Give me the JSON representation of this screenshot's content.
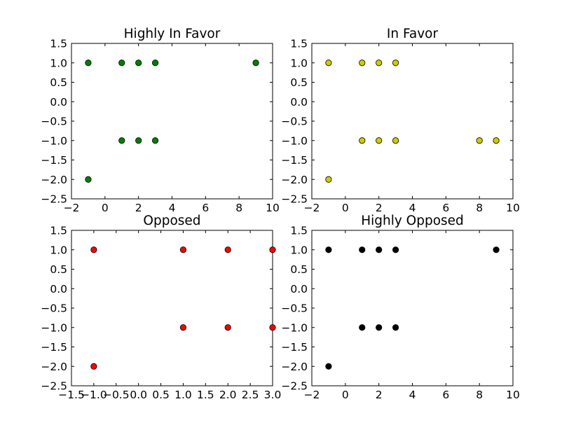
{
  "chart_data": [
    {
      "type": "scatter",
      "title": "Highly In Favor",
      "xlim": [
        -2,
        10
      ],
      "ylim": [
        -2.5,
        1.5
      ],
      "xticks": [
        "−2",
        "0",
        "2",
        "4",
        "6",
        "8",
        "10"
      ],
      "xtick_values": [
        -2,
        0,
        2,
        4,
        6,
        8,
        10
      ],
      "yticks": [
        "−2.5",
        "−2.0",
        "−1.5",
        "−1.0",
        "−0.5",
        "0.0",
        "0.5",
        "1.0",
        "1.5"
      ],
      "ytick_values": [
        -2.5,
        -2.0,
        -1.5,
        -1.0,
        -0.5,
        0.0,
        0.5,
        1.0,
        1.5
      ],
      "color": "#008000",
      "points": [
        [
          -1,
          1
        ],
        [
          1,
          1
        ],
        [
          2,
          1
        ],
        [
          3,
          1
        ],
        [
          9,
          1
        ],
        [
          1,
          -1
        ],
        [
          2,
          -1
        ],
        [
          3,
          -1
        ],
        [
          -1,
          -2
        ]
      ]
    },
    {
      "type": "scatter",
      "title": "In Favor",
      "xlim": [
        -2,
        10
      ],
      "ylim": [
        -2.5,
        1.5
      ],
      "xticks": [
        "−2",
        "0",
        "2",
        "4",
        "6",
        "8",
        "10"
      ],
      "xtick_values": [
        -2,
        0,
        2,
        4,
        6,
        8,
        10
      ],
      "yticks": [
        "−2.5",
        "−2.0",
        "−1.5",
        "−1.0",
        "−0.5",
        "0.0",
        "0.5",
        "1.0",
        "1.5"
      ],
      "ytick_values": [
        -2.5,
        -2.0,
        -1.5,
        -1.0,
        -0.5,
        0.0,
        0.5,
        1.0,
        1.5
      ],
      "color": "#cccc00",
      "points": [
        [
          -1,
          1
        ],
        [
          1,
          1
        ],
        [
          2,
          1
        ],
        [
          3,
          1
        ],
        [
          1,
          -1
        ],
        [
          2,
          -1
        ],
        [
          3,
          -1
        ],
        [
          8,
          -1
        ],
        [
          9,
          -1
        ],
        [
          -1,
          -2
        ]
      ]
    },
    {
      "type": "scatter",
      "title": "Opposed",
      "xlim": [
        -1.5,
        3.0
      ],
      "ylim": [
        -2.5,
        1.5
      ],
      "xticks": [
        "−1.5",
        "−1.0",
        "−0.5",
        "0.0",
        "0.5",
        "1.0",
        "1.5",
        "2.0",
        "2.5",
        "3.0"
      ],
      "xtick_values": [
        -1.5,
        -1.0,
        -0.5,
        0.0,
        0.5,
        1.0,
        1.5,
        2.0,
        2.5,
        3.0
      ],
      "yticks": [
        "−2.5",
        "−2.0",
        "−1.5",
        "−1.0",
        "−0.5",
        "0.0",
        "0.5",
        "1.0",
        "1.5"
      ],
      "ytick_values": [
        -2.5,
        -2.0,
        -1.5,
        -1.0,
        -0.5,
        0.0,
        0.5,
        1.0,
        1.5
      ],
      "color": "#ff0000",
      "points": [
        [
          -1,
          1
        ],
        [
          1,
          1
        ],
        [
          2,
          1
        ],
        [
          3,
          1
        ],
        [
          1,
          -1
        ],
        [
          2,
          -1
        ],
        [
          3,
          -1
        ],
        [
          -1,
          -2
        ]
      ]
    },
    {
      "type": "scatter",
      "title": "Highly Opposed",
      "xlim": [
        -2,
        10
      ],
      "ylim": [
        -2.5,
        1.5
      ],
      "xticks": [
        "−2",
        "0",
        "2",
        "4",
        "6",
        "8",
        "10"
      ],
      "xtick_values": [
        -2,
        0,
        2,
        4,
        6,
        8,
        10
      ],
      "yticks": [
        "−2.5",
        "−2.0",
        "−1.5",
        "−1.0",
        "−0.5",
        "0.0",
        "0.5",
        "1.0",
        "1.5"
      ],
      "ytick_values": [
        -2.5,
        -2.0,
        -1.5,
        -1.0,
        -0.5,
        0.0,
        0.5,
        1.0,
        1.5
      ],
      "color": "#000000",
      "points": [
        [
          -1,
          1
        ],
        [
          1,
          1
        ],
        [
          2,
          1
        ],
        [
          3,
          1
        ],
        [
          9,
          1
        ],
        [
          1,
          -1
        ],
        [
          2,
          -1
        ],
        [
          3,
          -1
        ],
        [
          -1,
          -2
        ]
      ]
    }
  ]
}
